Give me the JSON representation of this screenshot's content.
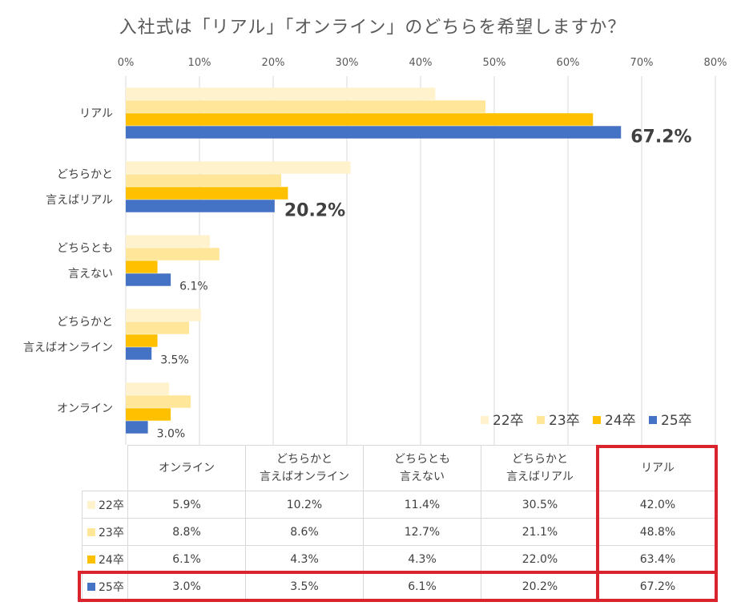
{
  "chart_data": {
    "type": "bar",
    "orientation": "horizontal",
    "title": "入社式は「リアル」「オンライン」のどちらを希望しますか？",
    "categories": [
      [
        "リアル"
      ],
      [
        "どちらかと",
        "言えばリアル"
      ],
      [
        "どちらとも",
        "言えない"
      ],
      [
        "どちらかと",
        "言えばオンライン"
      ],
      [
        "オンライン"
      ]
    ],
    "series": [
      {
        "name": "22卒",
        "color": "#fff2cc",
        "values": [
          42.0,
          30.5,
          11.4,
          10.2,
          5.9
        ]
      },
      {
        "name": "23卒",
        "color": "#ffe699",
        "values": [
          48.8,
          21.1,
          12.7,
          8.6,
          8.8
        ]
      },
      {
        "name": "24卒",
        "color": "#ffc000",
        "values": [
          63.4,
          22.0,
          4.3,
          4.3,
          6.1
        ]
      },
      {
        "name": "25卒",
        "color": "#4472c4",
        "values": [
          67.2,
          20.2,
          6.1,
          3.5,
          3.0
        ]
      }
    ],
    "data_labels": {
      "series": "25卒",
      "labels": [
        "67.2%",
        "20.2%",
        "6.1%",
        "3.5%",
        "3.0%"
      ]
    },
    "xlim": [
      0,
      80
    ],
    "x_ticks": [
      "0%",
      "10%",
      "20%",
      "30%",
      "40%",
      "50%",
      "60%",
      "70%",
      "80%"
    ],
    "grid": true,
    "legend_position": "bottom-right"
  },
  "table": {
    "columns": [
      [
        "オンライン"
      ],
      [
        "どちらかと",
        "言えばオンライン"
      ],
      [
        "どちらとも",
        "言えない"
      ],
      [
        "どちらかと",
        "言えばリアル"
      ],
      [
        "リアル"
      ]
    ],
    "rows": [
      {
        "series": "22卒",
        "values": [
          "5.9%",
          "10.2%",
          "11.4%",
          "30.5%",
          "42.0%"
        ]
      },
      {
        "series": "23卒",
        "values": [
          "8.8%",
          "8.6%",
          "12.7%",
          "21.1%",
          "48.8%"
        ]
      },
      {
        "series": "24卒",
        "values": [
          "6.1%",
          "4.3%",
          "4.3%",
          "22.0%",
          "63.4%"
        ]
      },
      {
        "series": "25卒",
        "values": [
          "3.0%",
          "3.5%",
          "6.1%",
          "20.2%",
          "67.2%"
        ]
      }
    ]
  },
  "highlight_color": "#d9232d"
}
